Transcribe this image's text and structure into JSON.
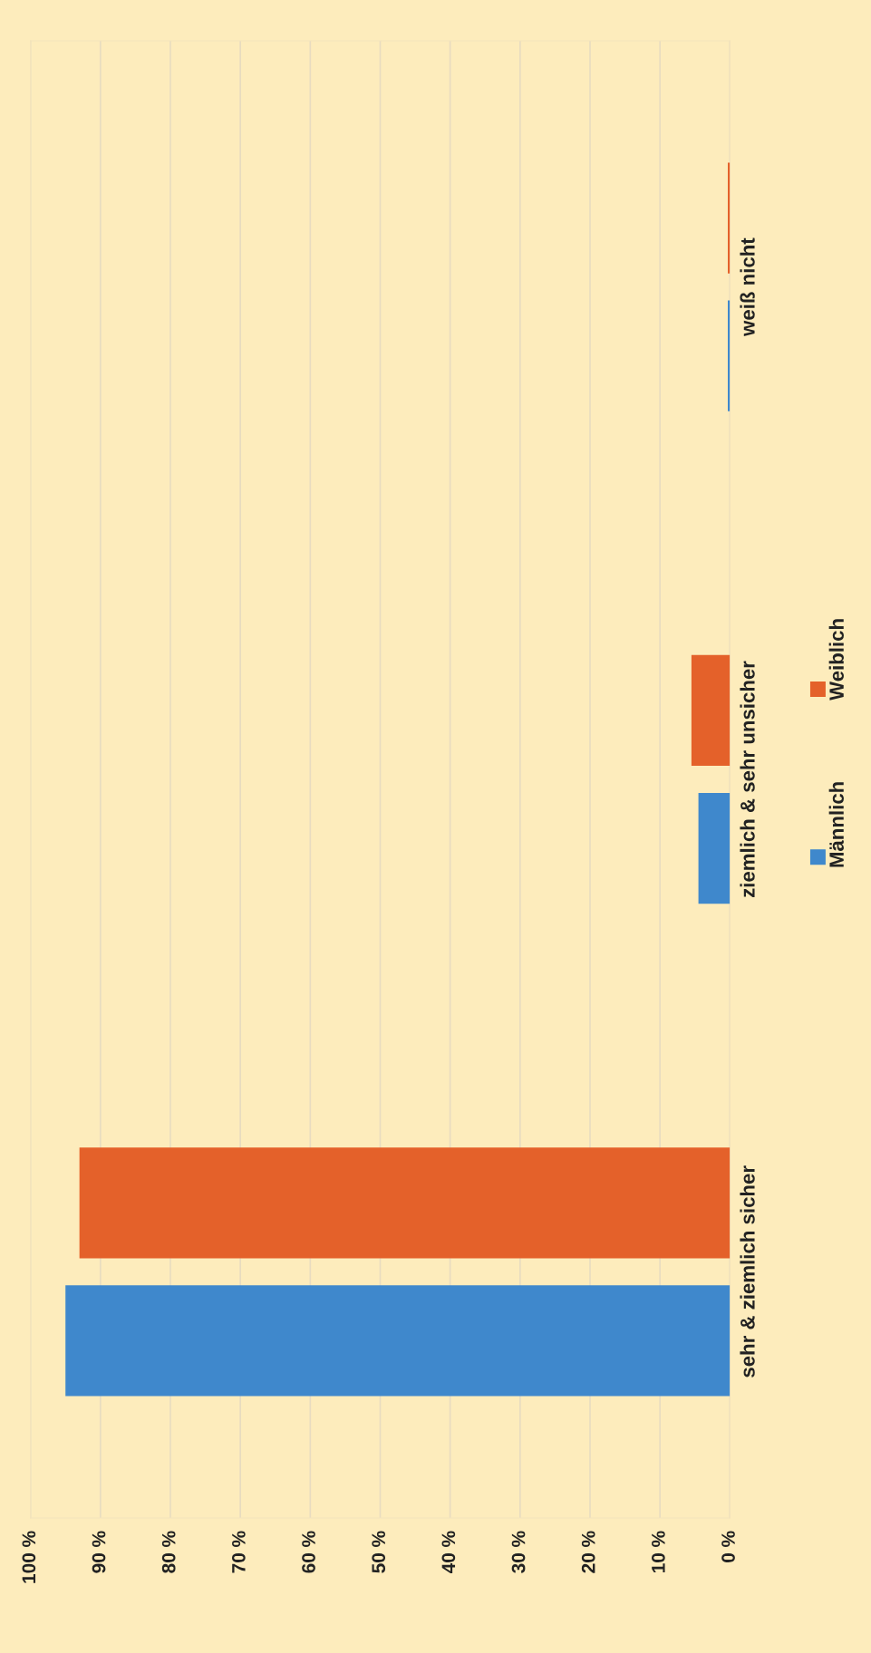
{
  "chart_data": {
    "type": "bar",
    "orientation": "horizontal",
    "categories": [
      "weiß nicht",
      "ziemlich & sehr unsicher",
      "sehr & ziemlich sicher"
    ],
    "series": [
      {
        "name": "Männlich",
        "color": "#3f88cc",
        "values": [
          0.3,
          4.5,
          95
        ]
      },
      {
        "name": "Weiblich",
        "color": "#e4612a",
        "values": [
          0.3,
          5.5,
          93
        ]
      }
    ],
    "xlim": [
      100,
      0
    ],
    "xticks": [
      {
        "value": 0,
        "label": "0 %"
      },
      {
        "value": 10,
        "label": "10 %"
      },
      {
        "value": 20,
        "label": "20 %"
      },
      {
        "value": 30,
        "label": "30 %"
      },
      {
        "value": 40,
        "label": "40 %"
      },
      {
        "value": 50,
        "label": "50 %"
      },
      {
        "value": 60,
        "label": "60 %"
      },
      {
        "value": 70,
        "label": "70 %"
      },
      {
        "value": 80,
        "label": "80 %"
      },
      {
        "value": 90,
        "label": "90 %"
      },
      {
        "value": 100,
        "label": "100 %"
      }
    ],
    "grid": "x",
    "legend": "right"
  }
}
